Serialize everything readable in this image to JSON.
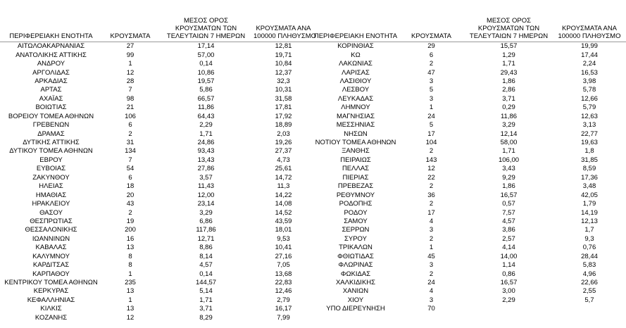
{
  "tables": [
    {
      "headers": [
        [
          "ΠΕΡΙΦΕΡΕΙΑΚΗ ΕΝΟΤΗΤΑ"
        ],
        [
          "ΚΡΟΥΣΜΑΤΑ"
        ],
        [
          "ΜΕΣΟΣ ΟΡΟΣ",
          "ΚΡΟΥΣΜΑΤΩΝ ΤΩΝ",
          "ΤΕΛΕΥΤΑΙΩΝ 7 ΗΜΕΡΩΝ"
        ],
        [
          "ΚΡΟΥΣΜΑΤΑ ΑΝΑ",
          "100000 ΠΛΗΘΥΣΜΟ"
        ]
      ],
      "rows": [
        [
          "ΑΙΤΩΛΟΑΚΑΡΝΑΝΙΑΣ",
          "27",
          "17,14",
          "12,81"
        ],
        [
          "ΑΝΑΤΟΛΙΚΗΣ ΑΤΤΙΚΗΣ",
          "99",
          "57,00",
          "19,71"
        ],
        [
          "ΑΝΔΡΟΥ",
          "1",
          "0,14",
          "10,84"
        ],
        [
          "ΑΡΓΟΛΙΔΑΣ",
          "12",
          "10,86",
          "12,37"
        ],
        [
          "ΑΡΚΑΔΙΑΣ",
          "28",
          "19,57",
          "32,3"
        ],
        [
          "ΑΡΤΑΣ",
          "7",
          "5,86",
          "10,31"
        ],
        [
          "ΑΧΑΪΑΣ",
          "98",
          "66,57",
          "31,58"
        ],
        [
          "ΒΟΙΩΤΙΑΣ",
          "21",
          "11,86",
          "17,81"
        ],
        [
          "ΒΟΡΕΙΟΥ ΤΟΜΕΑ ΑΘΗΝΩΝ",
          "106",
          "64,43",
          "17,92"
        ],
        [
          "ΓΡΕΒΕΝΩΝ",
          "6",
          "2,29",
          "18,89"
        ],
        [
          "ΔΡΑΜΑΣ",
          "2",
          "1,71",
          "2,03"
        ],
        [
          "ΔΥΤΙΚΗΣ ΑΤΤΙΚΗΣ",
          "31",
          "24,86",
          "19,26"
        ],
        [
          "ΔΥΤΙΚΟΥ ΤΟΜΕΑ ΑΘΗΝΩΝ",
          "134",
          "93,43",
          "27,37"
        ],
        [
          "ΕΒΡΟΥ",
          "7",
          "13,43",
          "4,73"
        ],
        [
          "ΕΥΒΟΙΑΣ",
          "54",
          "27,86",
          "25,61"
        ],
        [
          "ΖΑΚΥΝΘΟΥ",
          "6",
          "3,57",
          "14,72"
        ],
        [
          "ΗΛΕΙΑΣ",
          "18",
          "11,43",
          "11,3"
        ],
        [
          "ΗΜΑΘΙΑΣ",
          "20",
          "12,00",
          "14,22"
        ],
        [
          "ΗΡΑΚΛΕΙΟΥ",
          "43",
          "23,14",
          "14,08"
        ],
        [
          "ΘΑΣΟΥ",
          "2",
          "3,29",
          "14,52"
        ],
        [
          "ΘΕΣΠΡΩΤΙΑΣ",
          "19",
          "6,86",
          "43,59"
        ],
        [
          "ΘΕΣΣΑΛΟΝΙΚΗΣ",
          "200",
          "117,86",
          "18,01"
        ],
        [
          "ΙΩΑΝΝΙΝΩΝ",
          "16",
          "12,71",
          "9,53"
        ],
        [
          "ΚΑΒΑΛΑΣ",
          "13",
          "8,86",
          "10,41"
        ],
        [
          "ΚΑΛΥΜΝΟΥ",
          "8",
          "8,14",
          "27,16"
        ],
        [
          "ΚΑΡΔΙΤΣΑΣ",
          "8",
          "4,57",
          "7,05"
        ],
        [
          "ΚΑΡΠΑΘΟΥ",
          "1",
          "0,14",
          "13,68"
        ],
        [
          "ΚΕΝΤΡΙΚΟΥ ΤΟΜΕΑ ΑΘΗΝΩΝ",
          "235",
          "144,57",
          "22,83"
        ],
        [
          "ΚΕΡΚΥΡΑΣ",
          "13",
          "5,14",
          "12,46"
        ],
        [
          "ΚΕΦΑΛΛΗΝΙΑΣ",
          "1",
          "1,71",
          "2,79"
        ],
        [
          "ΚΙΛΚΙΣ",
          "13",
          "3,71",
          "16,17"
        ],
        [
          "ΚΟΖΑΝΗΣ",
          "12",
          "8,29",
          "7,99"
        ]
      ]
    },
    {
      "headers": [
        [
          "ΠΕΡΙΦΕΡΕΙΑΚΗ ΕΝΟΤΗΤΑ"
        ],
        [
          "ΚΡΟΥΣΜΑΤΑ"
        ],
        [
          "ΜΕΣΟΣ ΟΡΟΣ",
          "ΚΡΟΥΣΜΑΤΩΝ ΤΩΝ",
          "ΤΕΛΕΥΤΑΙΩΝ 7 ΗΜΕΡΩΝ"
        ],
        [
          "ΚΡΟΥΣΜΑΤΑ ΑΝΑ",
          "100000 ΠΛΗΘΥΣΜΟ"
        ]
      ],
      "rows": [
        [
          "ΚΟΡΙΝΘΙΑΣ",
          "29",
          "15,57",
          "19,99"
        ],
        [
          "ΚΩ",
          "6",
          "1,29",
          "17,44"
        ],
        [
          "ΛΑΚΩΝΙΑΣ",
          "2",
          "1,71",
          "2,24"
        ],
        [
          "ΛΑΡΙΣΑΣ",
          "47",
          "29,43",
          "16,53"
        ],
        [
          "ΛΑΣΙΘΙΟΥ",
          "3",
          "1,86",
          "3,98"
        ],
        [
          "ΛΕΣΒΟΥ",
          "5",
          "2,86",
          "5,78"
        ],
        [
          "ΛΕΥΚΑΔΑΣ",
          "3",
          "3,71",
          "12,66"
        ],
        [
          "ΛΗΜΝΟΥ",
          "1",
          "0,29",
          "5,79"
        ],
        [
          "ΜΑΓΝΗΣΙΑΣ",
          "24",
          "11,86",
          "12,63"
        ],
        [
          "ΜΕΣΣΗΝΙΑΣ",
          "5",
          "3,29",
          "3,13"
        ],
        [
          "ΝΗΣΩΝ",
          "17",
          "12,14",
          "22,77"
        ],
        [
          "ΝΟΤΙΟΥ ΤΟΜΕΑ ΑΘΗΝΩΝ",
          "104",
          "58,00",
          "19,63"
        ],
        [
          "ΞΑΝΘΗΣ",
          "2",
          "1,71",
          "1,8"
        ],
        [
          "ΠΕΙΡΑΙΩΣ",
          "143",
          "106,00",
          "31,85"
        ],
        [
          "ΠΕΛΛΑΣ",
          "12",
          "3,43",
          "8,59"
        ],
        [
          "ΠΙΕΡΙΑΣ",
          "22",
          "9,29",
          "17,36"
        ],
        [
          "ΠΡΕΒΕΖΑΣ",
          "2",
          "1,86",
          "3,48"
        ],
        [
          "ΡΕΘΥΜΝΟΥ",
          "36",
          "16,57",
          "42,05"
        ],
        [
          "ΡΟΔΟΠΗΣ",
          "2",
          "0,57",
          "1,79"
        ],
        [
          "ΡΟΔΟΥ",
          "17",
          "7,57",
          "14,19"
        ],
        [
          "ΣΑΜΟΥ",
          "4",
          "4,57",
          "12,13"
        ],
        [
          "ΣΕΡΡΩΝ",
          "3",
          "3,86",
          "1,7"
        ],
        [
          "ΣΥΡΟΥ",
          "2",
          "2,57",
          "9,3"
        ],
        [
          "ΤΡΙΚΑΛΩΝ",
          "1",
          "4,14",
          "0,76"
        ],
        [
          "ΦΘΙΩΤΙΔΑΣ",
          "45",
          "14,00",
          "28,44"
        ],
        [
          "ΦΛΩΡΙΝΑΣ",
          "3",
          "1,14",
          "5,83"
        ],
        [
          "ΦΩΚΙΔΑΣ",
          "2",
          "0,86",
          "4,96"
        ],
        [
          "ΧΑΛΚΙΔΙΚΗΣ",
          "24",
          "16,57",
          "22,66"
        ],
        [
          "ΧΑΝΙΩΝ",
          "4",
          "3,00",
          "2,55"
        ],
        [
          "ΧΙΟΥ",
          "3",
          "2,29",
          "5,7"
        ],
        [
          "ΥΠΟ ΔΙΕΡΕΥΝΗΣΗ",
          "70"
        ]
      ]
    }
  ]
}
